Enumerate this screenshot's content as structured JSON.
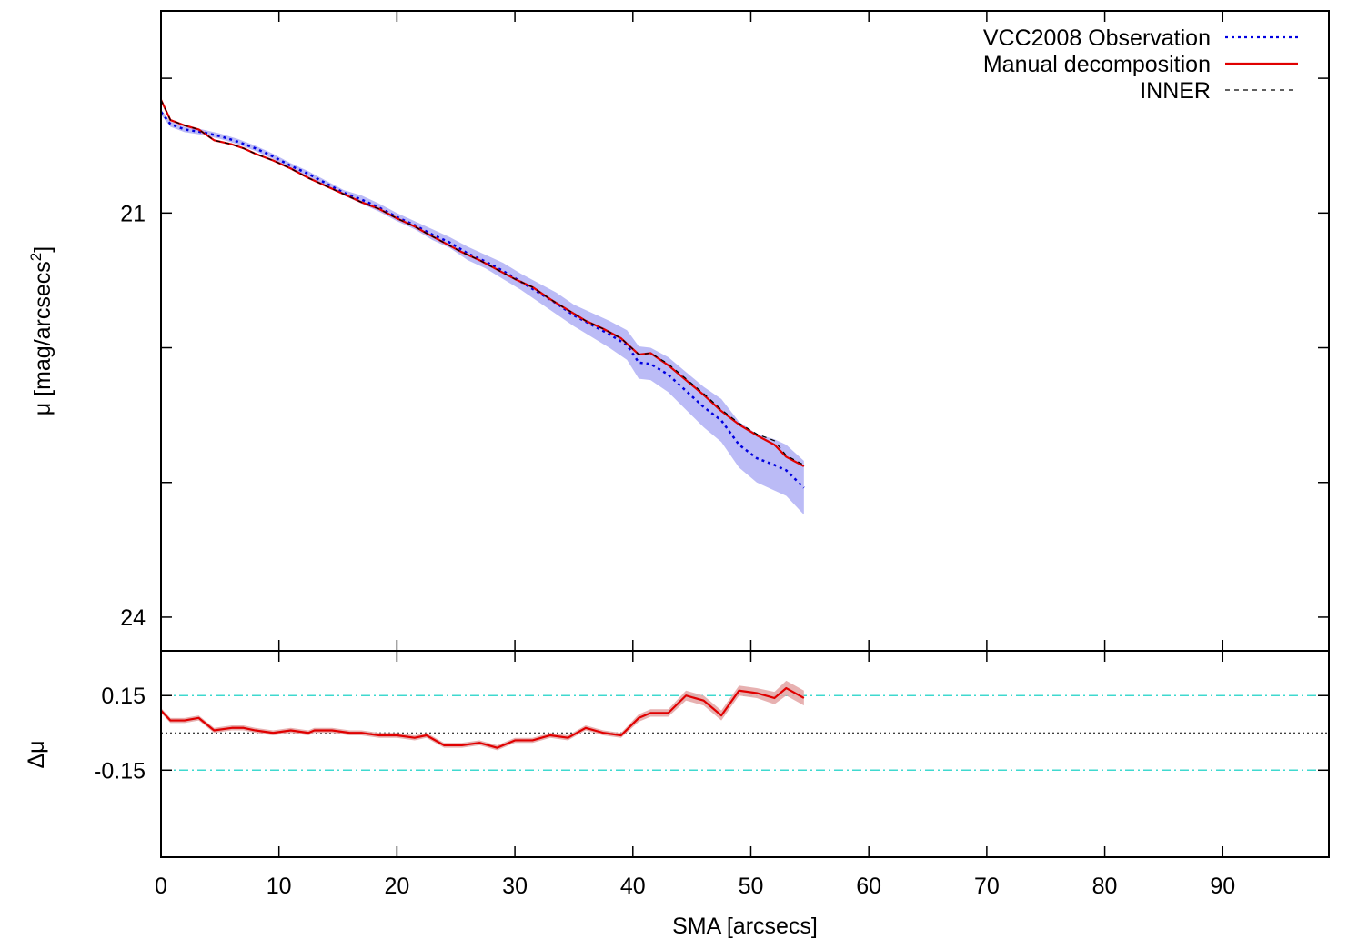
{
  "chart_data": [
    {
      "panel": "profile",
      "type": "line",
      "ylabel_main": "μ [mag/arcsecs",
      "ylabel_sup": "2",
      "ylabel_close": "]",
      "ylim": [
        24.25,
        19.5
      ],
      "xlim": [
        0,
        99
      ],
      "yticks": [
        20,
        21,
        22,
        23,
        24
      ],
      "ytick_labels": [
        "",
        "21",
        "",
        "",
        "24"
      ],
      "legend_position": "top-right",
      "series": [
        {
          "name": "VCC2008 Observation",
          "style": "dotted",
          "color": "#0000e0",
          "band_color": "#b4b4f5",
          "x": [
            0,
            0.8,
            2,
            3.5,
            5,
            6.5,
            8,
            9.5,
            11,
            12.5,
            14,
            15.5,
            17,
            18.5,
            20,
            21.5,
            23,
            24.5,
            26,
            27.5,
            29,
            30.5,
            32,
            33.5,
            35,
            36.5,
            38,
            39.5,
            40.5,
            41.5,
            43,
            44.5,
            46,
            47.5,
            49,
            50.5,
            52,
            53,
            54.5
          ],
          "y": [
            20.25,
            20.34,
            20.38,
            20.4,
            20.43,
            20.47,
            20.52,
            20.58,
            20.65,
            20.71,
            20.78,
            20.85,
            20.9,
            20.96,
            21.03,
            21.09,
            21.16,
            21.22,
            21.3,
            21.36,
            21.43,
            21.51,
            21.59,
            21.67,
            21.76,
            21.83,
            21.9,
            21.98,
            22.11,
            22.12,
            22.2,
            22.32,
            22.44,
            22.54,
            22.72,
            22.82,
            22.87,
            22.91,
            23.04
          ],
          "err": [
            0.02,
            0.02,
            0.02,
            0.02,
            0.02,
            0.02,
            0.02,
            0.02,
            0.02,
            0.02,
            0.02,
            0.02,
            0.03,
            0.03,
            0.03,
            0.03,
            0.04,
            0.04,
            0.05,
            0.05,
            0.06,
            0.06,
            0.07,
            0.08,
            0.08,
            0.09,
            0.1,
            0.11,
            0.12,
            0.12,
            0.13,
            0.14,
            0.15,
            0.16,
            0.17,
            0.18,
            0.19,
            0.19,
            0.2
          ]
        },
        {
          "name": "Manual decomposition",
          "style": "solid",
          "color": "#e00000",
          "x": [
            0,
            0.8,
            2,
            3.2,
            4.5,
            6,
            7,
            8,
            9.5,
            11,
            12.5,
            13,
            14.5,
            16,
            17,
            18.5,
            20,
            21.5,
            22.5,
            24,
            25.5,
            27,
            28.5,
            30,
            31.5,
            33,
            34.5,
            36,
            37.5,
            39,
            40.5,
            41.5,
            43,
            44.5,
            46,
            47.5,
            49,
            50.5,
            52,
            53,
            54.5
          ],
          "y": [
            20.16,
            20.31,
            20.35,
            20.38,
            20.46,
            20.49,
            20.52,
            20.56,
            20.61,
            20.67,
            20.74,
            20.76,
            20.82,
            20.88,
            20.92,
            20.97,
            21.04,
            21.1,
            21.15,
            21.22,
            21.29,
            21.35,
            21.42,
            21.49,
            21.55,
            21.64,
            21.72,
            21.8,
            21.86,
            21.93,
            22.05,
            22.04,
            22.13,
            22.24,
            22.35,
            22.47,
            22.57,
            22.65,
            22.72,
            22.81,
            22.88
          ]
        },
        {
          "name": "INNER",
          "style": "dashed",
          "color": "#000000",
          "x": [
            0,
            0.8,
            2,
            3.2,
            4.5,
            6,
            7,
            8,
            9.5,
            11,
            12.5,
            13,
            14.5,
            16,
            17,
            18.5,
            20,
            21.5,
            22.5,
            24,
            25.5,
            27,
            28.5,
            30,
            31.5,
            33,
            34.5,
            36,
            37.5,
            39,
            40.5,
            41.5,
            43,
            44.5,
            46,
            47.5,
            49,
            50.5,
            52,
            53,
            54.5
          ],
          "y": [
            20.16,
            20.31,
            20.35,
            20.38,
            20.46,
            20.49,
            20.52,
            20.56,
            20.61,
            20.67,
            20.74,
            20.76,
            20.82,
            20.88,
            20.92,
            20.97,
            21.04,
            21.1,
            21.15,
            21.22,
            21.29,
            21.35,
            21.42,
            21.49,
            21.55,
            21.64,
            21.72,
            21.8,
            21.86,
            21.93,
            22.05,
            22.04,
            22.12,
            22.23,
            22.34,
            22.46,
            22.56,
            22.64,
            22.69,
            22.8,
            22.87
          ]
        }
      ]
    },
    {
      "panel": "residual",
      "type": "line",
      "ylabel": "Δμ",
      "xlabel": "SMA [arcsecs]",
      "xlim": [
        0,
        99
      ],
      "ylim": [
        -0.5,
        0.33
      ],
      "xticks": [
        0,
        10,
        20,
        30,
        40,
        50,
        60,
        70,
        80,
        90
      ],
      "yticks": [
        0.15,
        -0.15
      ],
      "ytick_labels": [
        "0.15",
        "-0.15"
      ],
      "reference_lines": [
        {
          "y": 0.15,
          "style": "dash-dot",
          "color": "#3fd9cf"
        },
        {
          "y": -0.15,
          "style": "dash-dot",
          "color": "#3fd9cf"
        },
        {
          "y": 0,
          "style": "dotted",
          "color": "#000000"
        }
      ],
      "series": [
        {
          "name": "residual",
          "style": "solid",
          "color": "#e00000",
          "band_color": "#e4a8a8",
          "x": [
            0,
            0.8,
            2,
            3.2,
            4.5,
            6,
            7,
            8,
            9.5,
            11,
            12.5,
            13,
            14.5,
            16,
            17,
            18.5,
            20,
            21.5,
            22.5,
            24,
            25.5,
            27,
            28.5,
            30,
            31.5,
            33,
            34.5,
            36,
            37.5,
            39,
            40.5,
            41.5,
            43,
            44.5,
            46,
            47.5,
            49,
            50.5,
            52,
            53,
            54.5
          ],
          "y": [
            0.09,
            0.05,
            0.05,
            0.06,
            0.01,
            0.02,
            0.02,
            0.01,
            0.0,
            0.01,
            0.0,
            0.01,
            0.01,
            0.0,
            0.0,
            -0.01,
            -0.01,
            -0.02,
            -0.01,
            -0.05,
            -0.05,
            -0.04,
            -0.06,
            -0.03,
            -0.03,
            -0.01,
            -0.02,
            0.02,
            0.0,
            -0.01,
            0.06,
            0.08,
            0.08,
            0.15,
            0.13,
            0.07,
            0.17,
            0.16,
            0.14,
            0.18,
            0.14
          ],
          "err": [
            0.01,
            0.01,
            0.01,
            0.01,
            0.01,
            0.01,
            0.01,
            0.01,
            0.01,
            0.01,
            0.01,
            0.01,
            0.01,
            0.01,
            0.01,
            0.01,
            0.01,
            0.01,
            0.01,
            0.01,
            0.01,
            0.01,
            0.01,
            0.01,
            0.01,
            0.01,
            0.01,
            0.01,
            0.01,
            0.01,
            0.015,
            0.015,
            0.015,
            0.02,
            0.02,
            0.02,
            0.02,
            0.02,
            0.025,
            0.03,
            0.03
          ]
        }
      ]
    }
  ]
}
